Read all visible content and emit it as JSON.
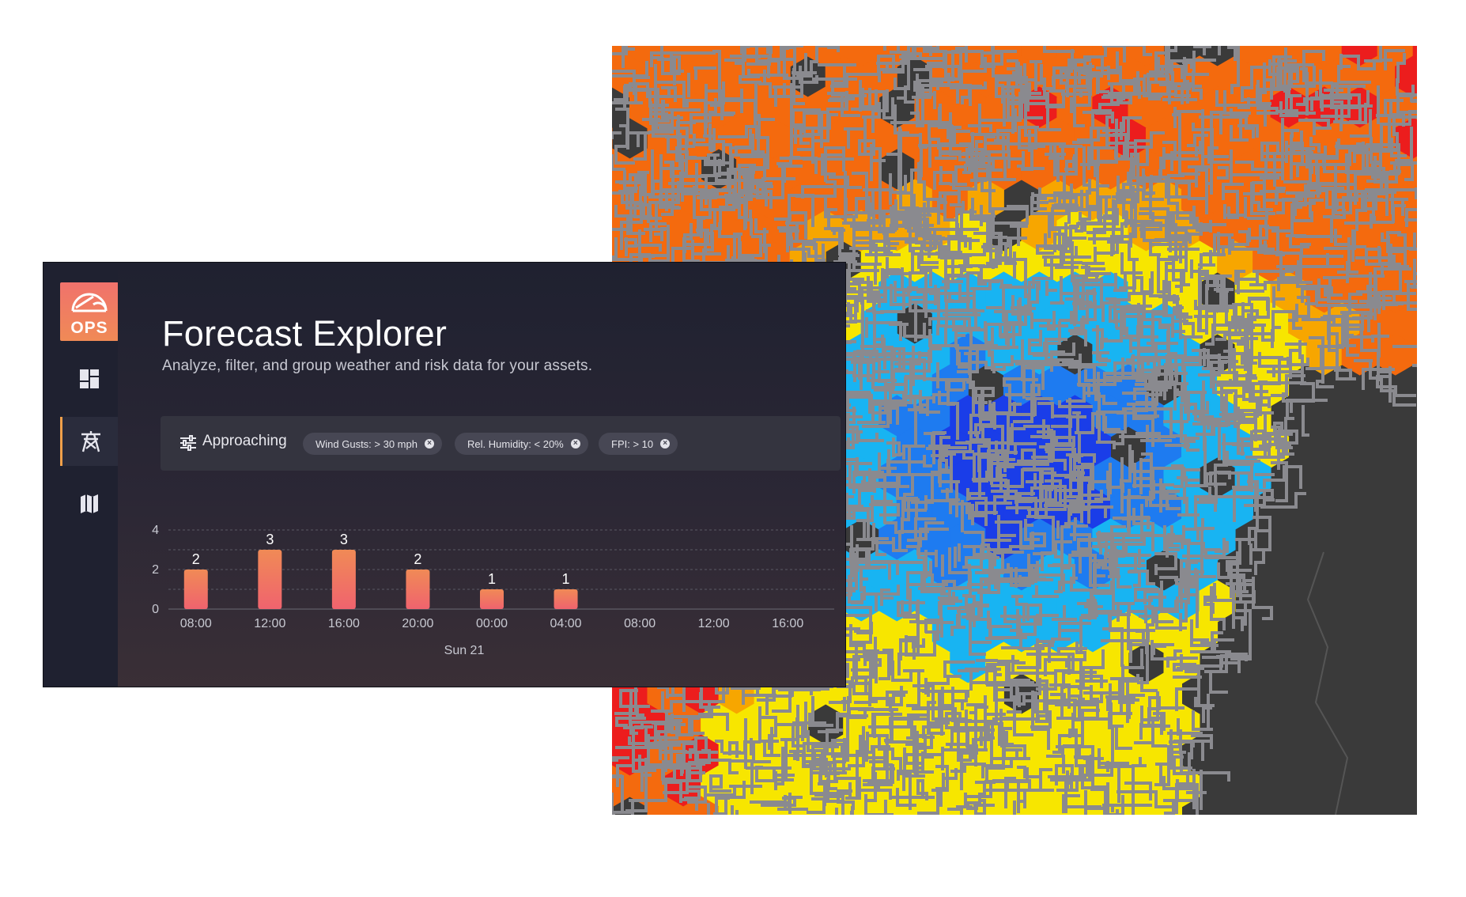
{
  "app": {
    "logo_text": "OPS",
    "title": "Forecast Explorer",
    "subtitle": "Analyze, filter, and group weather and risk data for your assets."
  },
  "sidebar": {
    "items": [
      {
        "name": "dashboard",
        "icon": "dashboard-icon",
        "active": false
      },
      {
        "name": "assets",
        "icon": "transmission-tower-icon",
        "active": true
      },
      {
        "name": "map",
        "icon": "map-icon",
        "active": false
      }
    ]
  },
  "filters": {
    "label": "Approaching",
    "chips": [
      {
        "text": "Wind Gusts: > 30 mph"
      },
      {
        "text": "Rel. Humidity: < 20%"
      },
      {
        "text": "FPI: > 10"
      }
    ]
  },
  "chart_data": {
    "type": "bar",
    "categories": [
      "08:00",
      "12:00",
      "16:00",
      "20:00",
      "00:00",
      "04:00",
      "08:00",
      "12:00",
      "16:00"
    ],
    "values": [
      2,
      3,
      3,
      2,
      1,
      1,
      null,
      null,
      null
    ],
    "xlabel": "Sun 21",
    "ylabel": "",
    "ylim": [
      0,
      4
    ],
    "yticks": [
      0,
      2,
      4
    ],
    "grid": true,
    "bar_gradient": [
      "#f08a56",
      "#f0636e"
    ]
  },
  "map": {
    "palette": {
      "dark_blue": "#1a3de8",
      "blue": "#1e7bf0",
      "light_blue": "#18b4f2",
      "yellow": "#f7e600",
      "orange": "#f7a600",
      "dark_orange": "#f46a0e",
      "red": "#ec1d1d",
      "line": "#8a8a8f",
      "background": "#3a3a3a"
    }
  }
}
